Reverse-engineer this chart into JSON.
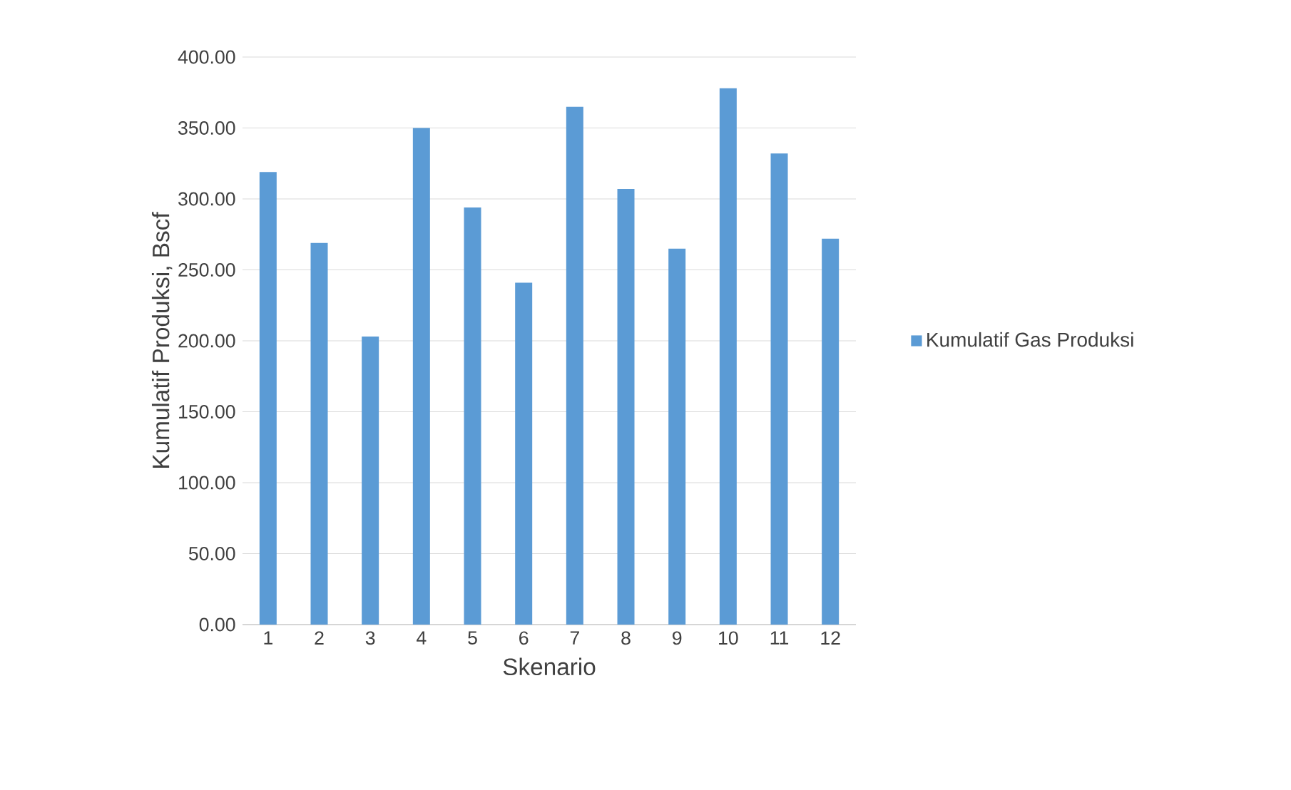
{
  "chart_data": {
    "type": "bar",
    "xlabel": "Skenario",
    "ylabel": "Kumulatif Produksi, Bscf",
    "categories": [
      "1",
      "2",
      "3",
      "4",
      "5",
      "6",
      "7",
      "8",
      "9",
      "10",
      "11",
      "12"
    ],
    "series": [
      {
        "name": "Kumulatif Gas Produksi",
        "color": "#5b9bd5",
        "values": [
          319,
          269,
          203,
          350,
          294,
          241,
          365,
          307,
          265,
          378,
          332,
          272
        ]
      }
    ],
    "ylim": [
      0,
      400
    ],
    "yticks": [
      {
        "value": 0,
        "label": "0.00"
      },
      {
        "value": 50,
        "label": "50.00"
      },
      {
        "value": 100,
        "label": "100.00"
      },
      {
        "value": 150,
        "label": "150.00"
      },
      {
        "value": 200,
        "label": "200.00"
      },
      {
        "value": 250,
        "label": "250.00"
      },
      {
        "value": 300,
        "label": "300.00"
      },
      {
        "value": 350,
        "label": "350.00"
      },
      {
        "value": 400,
        "label": "400.00"
      }
    ],
    "grid": "y",
    "legend": "right"
  }
}
